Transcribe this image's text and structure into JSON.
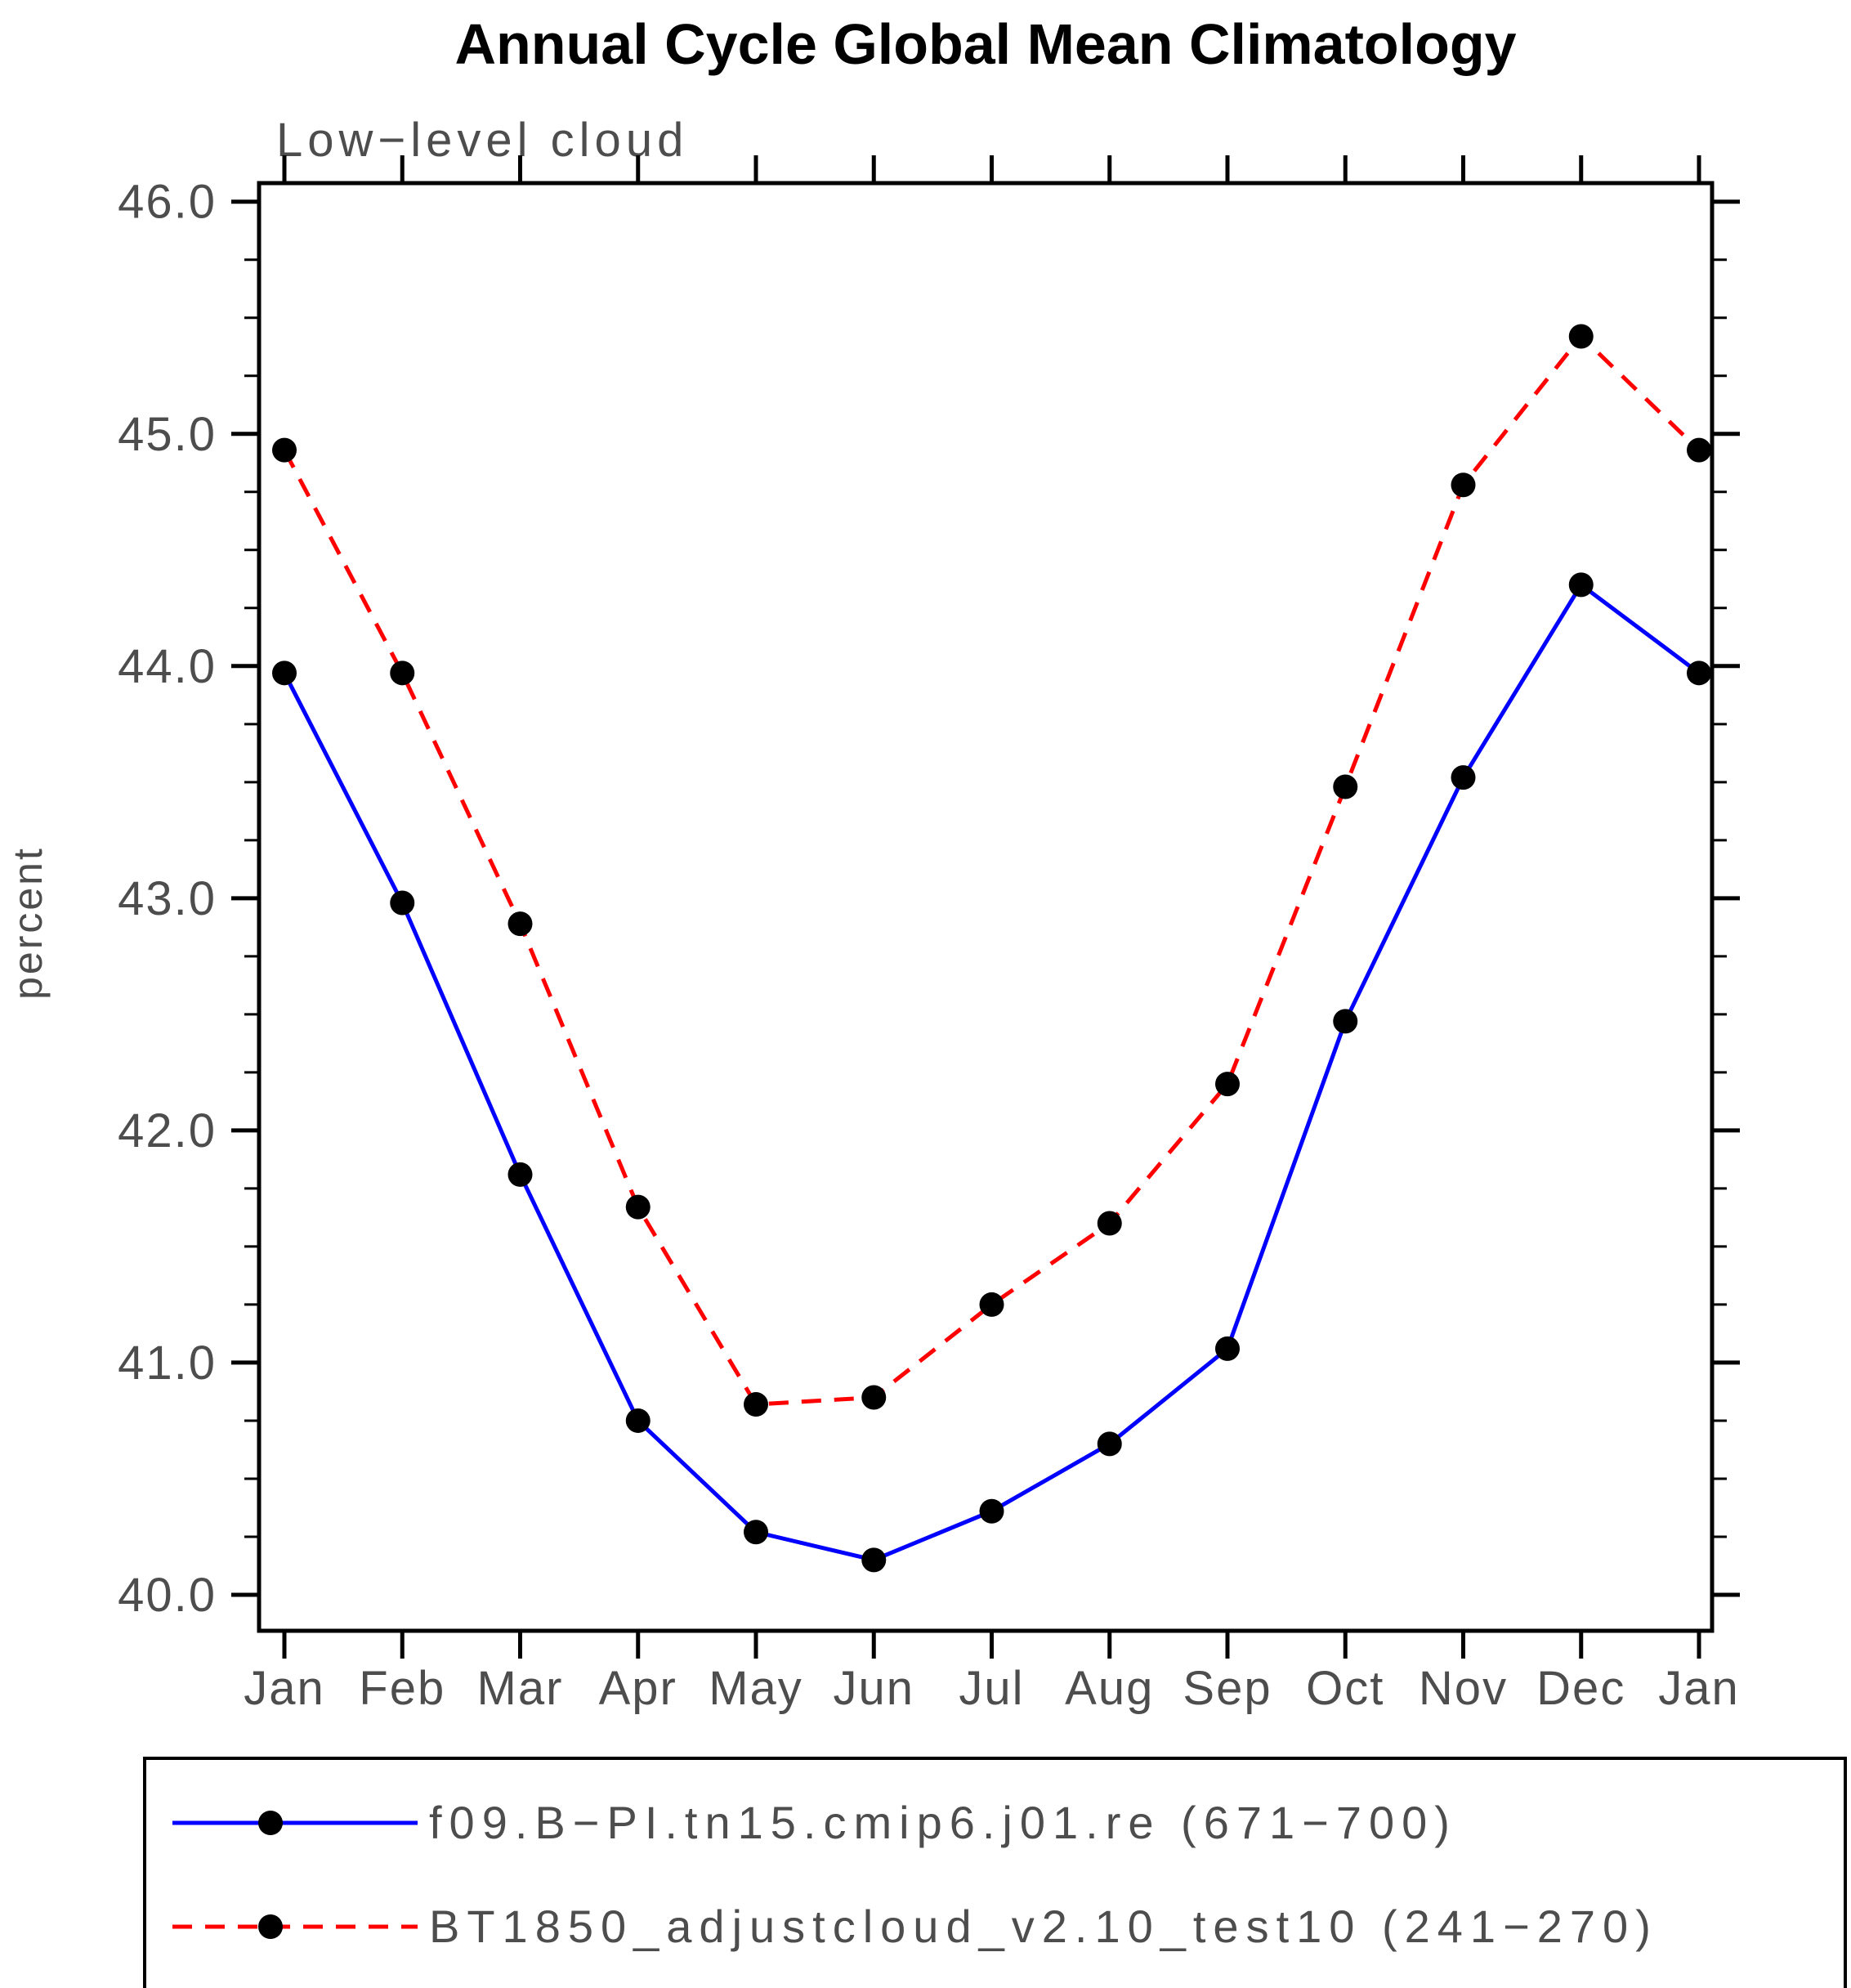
{
  "chart_data": {
    "type": "line",
    "title": "Annual Cycle Global Mean Climatology",
    "subtitle": "Low−level cloud",
    "ylabel": "percent",
    "xlabel": "",
    "ylim": [
      40.0,
      46.0
    ],
    "yticks": [
      40.0,
      41.0,
      42.0,
      43.0,
      44.0,
      45.0,
      46.0
    ],
    "ytick_labels": [
      "40.0",
      "41.0",
      "42.0",
      "43.0",
      "44.0",
      "45.0",
      "46.0"
    ],
    "minor_tick_step": 0.25,
    "categories": [
      "Jan",
      "Feb",
      "Mar",
      "Apr",
      "May",
      "Jun",
      "Jul",
      "Aug",
      "Sep",
      "Oct",
      "Nov",
      "Dec",
      "Jan"
    ],
    "grid": false,
    "legend_position": "bottom",
    "marker": "filled-circle",
    "marker_color": "#000000",
    "axis_color": "#000000",
    "text_color": "#4d4d4d",
    "series": [
      {
        "name": "f09.B−PI.tn15.cmip6.j01.re (671−700)",
        "color": "#0000ff",
        "style": "solid",
        "values": [
          43.97,
          42.98,
          41.81,
          40.75,
          40.27,
          40.15,
          40.36,
          40.65,
          41.06,
          42.47,
          43.52,
          44.35,
          43.97
        ]
      },
      {
        "name": "BT1850_adjustcloud_v2.10_test10 (241−270)",
        "color": "#ff0000",
        "style": "dashed",
        "values": [
          44.93,
          43.97,
          42.89,
          41.67,
          40.82,
          40.85,
          41.25,
          41.6,
          42.2,
          43.48,
          44.78,
          45.42,
          44.93
        ]
      }
    ]
  }
}
